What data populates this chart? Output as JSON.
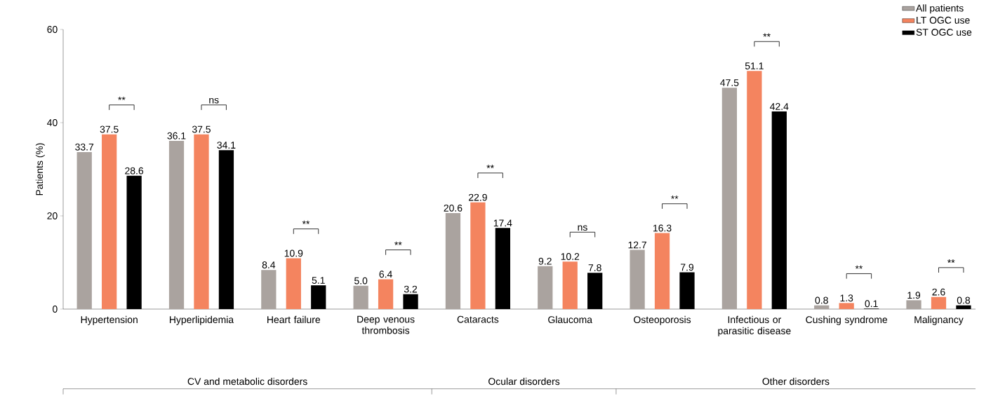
{
  "chart_data": {
    "type": "bar",
    "ylabel": "Patients (%)",
    "categories": [
      "Hypertension",
      "Hyperlipidemia",
      "Heart failure",
      "Deep venous thrombosis",
      "Cataracts",
      "Glaucoma",
      "Osteoporosis",
      "Infectious or parasitic disease",
      "Cushing syndrome",
      "Malignancy"
    ],
    "series": [
      {
        "name": "All patients",
        "color": "#aaa39f",
        "values": [
          33.7,
          36.1,
          8.4,
          5.0,
          20.6,
          9.2,
          12.7,
          47.5,
          0.8,
          1.9
        ],
        "value_labels": [
          "33.7",
          "36.1",
          "8.4",
          "5.0",
          "20.6",
          "9.2",
          "12.7",
          "47.5",
          "0.8",
          "1.9"
        ]
      },
      {
        "name": "LT OGC use",
        "color": "#f4845f",
        "values": [
          37.5,
          37.5,
          10.9,
          6.4,
          22.9,
          10.2,
          16.3,
          51.1,
          1.3,
          2.6
        ],
        "value_labels": [
          "37.5",
          "37.5",
          "10.9",
          "6.4",
          "22.9",
          "10.2",
          "16.3",
          "51.1",
          "1.3",
          "2.6"
        ]
      },
      {
        "name": "ST OGC use",
        "color": "#000000",
        "values": [
          28.6,
          34.1,
          5.1,
          3.2,
          17.4,
          7.8,
          7.9,
          42.4,
          0.1,
          0.8
        ],
        "value_labels": [
          "28.6",
          "34.1",
          "5.1",
          "3.2",
          "17.4",
          "7.8",
          "7.9",
          "42.4",
          "0.1",
          "0.8"
        ]
      }
    ],
    "ylim": [
      0,
      60
    ],
    "yticks": [
      0,
      20,
      40,
      60
    ],
    "legend": "top right",
    "annotations": [
      "**",
      "ns",
      "**",
      "**",
      "**",
      "ns",
      "**",
      "**",
      "**",
      "**",
      "CV and metabolic disorders",
      "Ocular disorders",
      "Other disorders"
    ]
  }
}
